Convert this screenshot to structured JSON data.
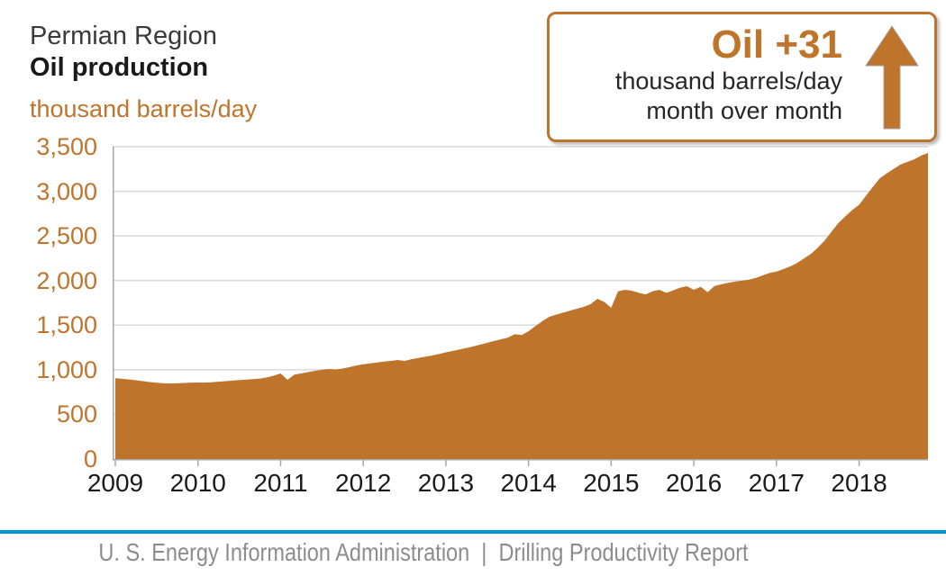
{
  "header": {
    "region": "Permian Region",
    "metric": "Oil production",
    "units": "thousand barrels/day"
  },
  "callout": {
    "value_label": "Oil +31",
    "line1": "thousand barrels/day",
    "line2": "month over month",
    "icon": "up-arrow-icon"
  },
  "footer": {
    "text": "U. S. Energy Information Administration  |  Drilling Productivity Report"
  },
  "colors": {
    "accent": "#bf742c",
    "area_fill": "#bf742c",
    "grid": "#d9d9d9",
    "axis": "#a6a6a6",
    "text_dark": "#1a1a1a",
    "footer_text": "#8c8c8c",
    "footer_line_blue": "#0096d6"
  },
  "chart_data": {
    "type": "area",
    "title": "Permian Region Oil production",
    "ylabel": "thousand barrels/day",
    "xlabel": "",
    "ylim": [
      0,
      3500
    ],
    "grid": "horizontal",
    "legend": "none",
    "fill_color": "#bf742c",
    "ytick_values": [
      0,
      500,
      1000,
      1500,
      2000,
      2500,
      3000,
      3500
    ],
    "ytick_labels": [
      "0",
      "500",
      "1,000",
      "1,500",
      "2,000",
      "2,500",
      "3,000",
      "3,500"
    ],
    "xtick_labels": [
      "2009",
      "2010",
      "2011",
      "2012",
      "2013",
      "2014",
      "2015",
      "2016",
      "2017",
      "2018"
    ],
    "x_period": "monthly, January 2009 through November 2018",
    "annotation": {
      "label": "Oil +31",
      "detail": "thousand barrels/day month over month"
    },
    "series": [
      {
        "name": "Oil production (thousand barrels/day)",
        "monthly_values": [
          905,
          899,
          891,
          882,
          872,
          863,
          855,
          849,
          846,
          848,
          852,
          856,
          858,
          856,
          860,
          866,
          872,
          879,
          885,
          890,
          895,
          902,
          914,
          934,
          958,
          888,
          946,
          960,
          974,
          988,
          1000,
          1008,
          1004,
          1014,
          1030,
          1048,
          1062,
          1072,
          1082,
          1092,
          1100,
          1110,
          1100,
          1118,
          1132,
          1146,
          1160,
          1176,
          1195,
          1212,
          1228,
          1244,
          1262,
          1282,
          1302,
          1322,
          1342,
          1360,
          1398,
          1390,
          1432,
          1490,
          1545,
          1594,
          1618,
          1640,
          1662,
          1685,
          1705,
          1735,
          1795,
          1760,
          1694,
          1880,
          1896,
          1886,
          1862,
          1845,
          1880,
          1896,
          1862,
          1890,
          1920,
          1936,
          1896,
          1930,
          1870,
          1938,
          1958,
          1975,
          1988,
          1998,
          2010,
          2030,
          2058,
          2086,
          2100,
          2128,
          2158,
          2198,
          2248,
          2298,
          2368,
          2448,
          2548,
          2645,
          2720,
          2790,
          2850,
          2950,
          3050,
          3146,
          3200,
          3250,
          3300,
          3330,
          3358,
          3400,
          3430
        ]
      }
    ]
  }
}
